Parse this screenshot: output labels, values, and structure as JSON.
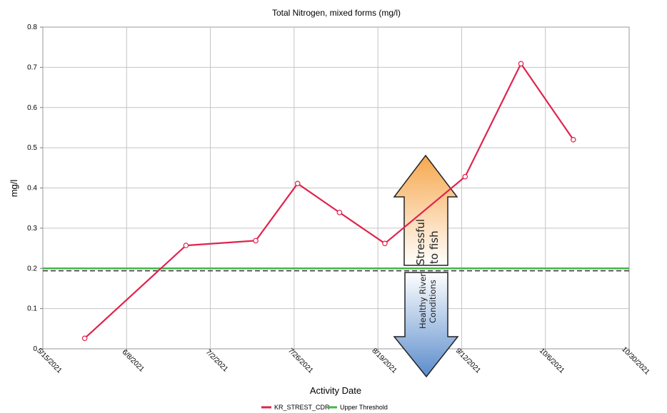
{
  "chart_data": {
    "type": "line",
    "title": "Total Nitrogen, mixed forms (mg/l)",
    "xlabel": "Activity Date",
    "ylabel": "mg/l",
    "x_ticks": [
      "5/15/2021",
      "6/8/2021",
      "7/2/2021",
      "7/26/2021",
      "8/19/2021",
      "9/12/2021",
      "10/6/2021",
      "10/30/2021"
    ],
    "xlim": [
      "2021-05-15",
      "2021-10-30"
    ],
    "ylim": [
      0,
      0.8
    ],
    "y_ticks": [
      "0",
      "0.1",
      "0.2",
      "0.3",
      "0.4",
      "0.5",
      "0.6",
      "0.7",
      "0.8"
    ],
    "grid": true,
    "legend_position": "bottom-center",
    "series": [
      {
        "name": "KR_STREST_CDR",
        "color": "#e0234e",
        "marker": "open-circle",
        "points": [
          {
            "x": "2021-05-27",
            "y": 0.026
          },
          {
            "x": "2021-06-25",
            "y": 0.257
          },
          {
            "x": "2021-07-15",
            "y": 0.269
          },
          {
            "x": "2021-07-27",
            "y": 0.411
          },
          {
            "x": "2021-08-08",
            "y": 0.339
          },
          {
            "x": "2021-08-21",
            "y": 0.262
          },
          {
            "x": "2021-09-13",
            "y": 0.428
          },
          {
            "x": "2021-09-29",
            "y": 0.709
          },
          {
            "x": "2021-10-14",
            "y": 0.52
          }
        ]
      },
      {
        "name": "Upper Threshold",
        "color": "#46b549",
        "value": 0.2
      }
    ],
    "reference_line": {
      "style": "dashed",
      "color": "#333333",
      "value": 0.194
    },
    "annotations": {
      "up_arrow_text": [
        "Stressful",
        "to fish"
      ],
      "down_arrow_text": [
        "Healthy River",
        "Conditions"
      ]
    }
  }
}
